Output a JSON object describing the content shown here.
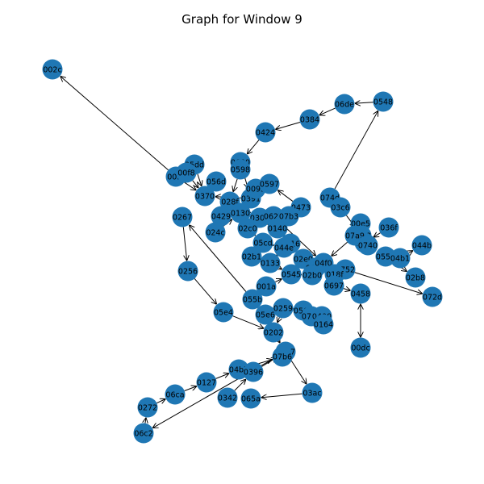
{
  "title": "Graph for Window 9",
  "node_color": "#1f77b4",
  "edge_color": "#000000",
  "nodes": [
    "002c",
    "0548",
    "06de",
    "0384",
    "0424",
    "0600",
    "0598",
    "05dd",
    "00f4",
    "00f8",
    "056d",
    "0370",
    "028f",
    "0391",
    "0095",
    "0597",
    "0473",
    "074d",
    "03c6",
    "0267",
    "0429",
    "0130",
    "0302",
    "0627",
    "07b3",
    "024c",
    "02c0",
    "0140",
    "00e5",
    "036f",
    "0748",
    "0749",
    "07a9",
    "0740",
    "0550",
    "044b",
    "04b1",
    "05cd",
    "0316",
    "044e",
    "02b1",
    "0133",
    "02e0",
    "02a0",
    "04f0",
    "0752",
    "0256",
    "0545",
    "02b0",
    "018f",
    "02b8",
    "001a",
    "0697",
    "0458",
    "072d",
    "055b",
    "0259",
    "05e4",
    "056b",
    "0708",
    "0400",
    "0164",
    "05e6",
    "0202",
    "00dc",
    "0317",
    "07b6",
    "04bb",
    "0396",
    "0127",
    "06ca",
    "0342",
    "065a",
    "03ac",
    "0272",
    "06c2"
  ],
  "edges": [
    [
      "00f4",
      "002c"
    ],
    [
      "0548",
      "06de"
    ],
    [
      "06de",
      "0384"
    ],
    [
      "0384",
      "0424"
    ],
    [
      "0424",
      "0600"
    ],
    [
      "0600",
      "0598"
    ],
    [
      "00f4",
      "0370"
    ],
    [
      "05dd",
      "0370"
    ],
    [
      "056d",
      "0370"
    ],
    [
      "0598",
      "028f"
    ],
    [
      "0597",
      "0391"
    ],
    [
      "0391",
      "0370"
    ],
    [
      "0095",
      "0130"
    ],
    [
      "0473",
      "0597"
    ],
    [
      "074d",
      "0548"
    ],
    [
      "03c6",
      "0748"
    ],
    [
      "0267",
      "0256"
    ],
    [
      "0256",
      "05e4"
    ],
    [
      "05e4",
      "0202"
    ],
    [
      "055b",
      "0267"
    ],
    [
      "0429",
      "0130"
    ],
    [
      "0130",
      "02c0"
    ],
    [
      "07b3",
      "0140"
    ],
    [
      "0140",
      "0316"
    ],
    [
      "00e5",
      "0740"
    ],
    [
      "036f",
      "0749"
    ],
    [
      "04b1",
      "044b"
    ],
    [
      "0550",
      "02b8"
    ],
    [
      "0550",
      "04b1"
    ],
    [
      "0752",
      "072d"
    ],
    [
      "02b1",
      "0133"
    ],
    [
      "0133",
      "0545"
    ],
    [
      "0545",
      "02b0"
    ],
    [
      "001a",
      "055b"
    ],
    [
      "018f",
      "0697"
    ],
    [
      "0697",
      "0458"
    ],
    [
      "0458",
      "00dc"
    ],
    [
      "00dc",
      "0458"
    ],
    [
      "0259",
      "056b"
    ],
    [
      "056b",
      "0708"
    ],
    [
      "0708",
      "0164"
    ],
    [
      "0202",
      "0317"
    ],
    [
      "0317",
      "03ac"
    ],
    [
      "03ac",
      "065a"
    ],
    [
      "0342",
      "0396"
    ],
    [
      "0396",
      "0317"
    ],
    [
      "04bb",
      "07b6"
    ],
    [
      "0127",
      "04bb"
    ],
    [
      "06ca",
      "0127"
    ],
    [
      "0272",
      "06ca"
    ],
    [
      "06c2",
      "0272"
    ],
    [
      "0317",
      "06c2"
    ],
    [
      "055b",
      "0202"
    ],
    [
      "0259",
      "0202"
    ],
    [
      "02c0",
      "05cd"
    ],
    [
      "05cd",
      "044e"
    ],
    [
      "0302",
      "0316"
    ],
    [
      "0627",
      "04f0"
    ],
    [
      "02e0",
      "02a0"
    ],
    [
      "0752",
      "018f"
    ],
    [
      "07a9",
      "04f0"
    ],
    [
      "024c",
      "0130"
    ],
    [
      "0429",
      "024c"
    ],
    [
      "00f8",
      "0370"
    ],
    [
      "0600",
      "0391"
    ],
    [
      "028f",
      "0302"
    ],
    [
      "0095",
      "0597"
    ],
    [
      "074d",
      "03c6"
    ],
    [
      "0400",
      "0164"
    ],
    [
      "05e6",
      "0202"
    ],
    [
      "001a",
      "0545"
    ],
    [
      "044e",
      "0133"
    ]
  ]
}
